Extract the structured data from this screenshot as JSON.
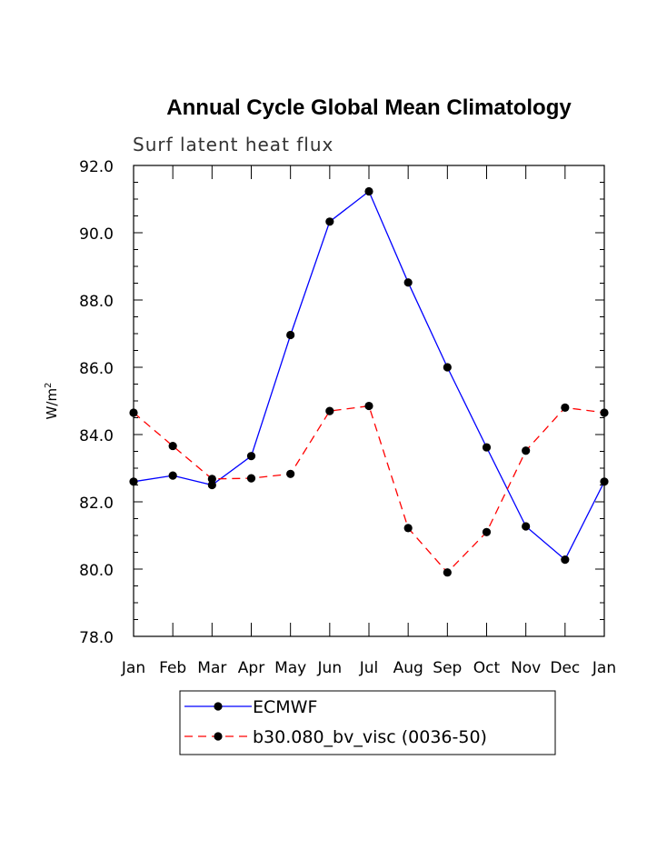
{
  "chart_data": {
    "type": "line",
    "title": "Annual Cycle Global Mean Climatology",
    "subtitle": "Surf latent heat flux",
    "ylabel_main": "W/m",
    "ylabel_sup": "2",
    "categories": [
      "Jan",
      "Feb",
      "Mar",
      "Apr",
      "May",
      "Jun",
      "Jul",
      "Aug",
      "Sep",
      "Oct",
      "Nov",
      "Dec",
      "Jan"
    ],
    "ylim": [
      78.0,
      92.0
    ],
    "yticks": [
      "78.0",
      "80.0",
      "82.0",
      "84.0",
      "86.0",
      "88.0",
      "90.0",
      "92.0"
    ],
    "series": [
      {
        "name": "ECMWF",
        "color": "#0000ff",
        "dash": "solid",
        "values": [
          82.6,
          82.78,
          82.5,
          83.36,
          86.96,
          90.33,
          91.23,
          88.52,
          86.0,
          83.62,
          81.27,
          80.28,
          82.6
        ]
      },
      {
        "name": "b30.080_bv_visc (0036-50)",
        "color": "#ff0000",
        "dash": "dashed",
        "values": [
          84.65,
          83.66,
          82.68,
          82.7,
          82.83,
          84.7,
          84.85,
          81.22,
          79.9,
          81.1,
          83.52,
          84.8,
          84.65
        ]
      }
    ],
    "legend_position": "bottom",
    "grid": false
  }
}
